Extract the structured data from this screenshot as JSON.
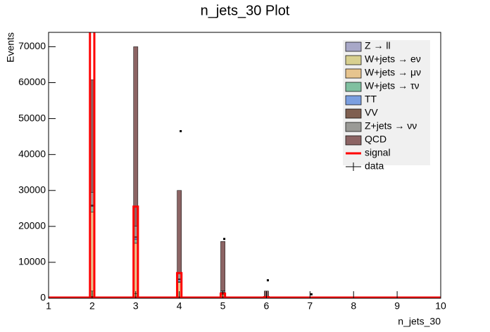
{
  "chart_data": {
    "type": "stacked-histogram",
    "title": "n_jets_30 Plot",
    "x_label": "n_jets_30",
    "y_label": "Events",
    "x": [
      2,
      3,
      4,
      5,
      6,
      7
    ],
    "series": [
      {
        "name": "Z → ll",
        "color": "#a8a8c8",
        "values": [
          500,
          300,
          100,
          30,
          5,
          0
        ]
      },
      {
        "name": "W+jets → eν",
        "color": "#d8d090",
        "values": [
          1500,
          1000,
          300,
          100,
          20,
          0
        ]
      },
      {
        "name": "W+jets → μν",
        "color": "#e6c48e",
        "values": [
          22000,
          14000,
          4000,
          1000,
          150,
          0
        ]
      },
      {
        "name": "W+jets → τν",
        "color": "#80c0a0",
        "values": [
          1500,
          1000,
          300,
          100,
          20,
          0
        ]
      },
      {
        "name": "TT",
        "color": "#7b9fe0",
        "values": [
          200,
          500,
          500,
          300,
          100,
          0
        ]
      },
      {
        "name": "VV",
        "color": "#7f5f50",
        "values": [
          300,
          300,
          200,
          100,
          20,
          0
        ]
      },
      {
        "name": "Z+jets → νν",
        "color": "#9a9a96",
        "values": [
          3500,
          3000,
          1500,
          400,
          60,
          0
        ]
      },
      {
        "name": "QCD",
        "color": "#8c6464",
        "values": [
          31300,
          49900,
          23100,
          13770,
          1625,
          200
        ]
      }
    ],
    "signal": {
      "name": "signal",
      "color": "#ff0000",
      "values": [
        120000,
        25500,
        7000,
        1300,
        300,
        50
      ]
    },
    "data": {
      "name": "data",
      "color": "#000000",
      "values": [
        null,
        null,
        46500,
        16500,
        5000,
        1100
      ]
    },
    "xlim": [
      1,
      10
    ],
    "xticks": [
      1,
      2,
      3,
      4,
      5,
      6,
      7,
      8,
      9,
      10
    ],
    "ylim": [
      0,
      74000
    ],
    "yticks": [
      0,
      10000,
      20000,
      30000,
      40000,
      50000,
      60000,
      70000
    ],
    "legend": "top-right"
  }
}
